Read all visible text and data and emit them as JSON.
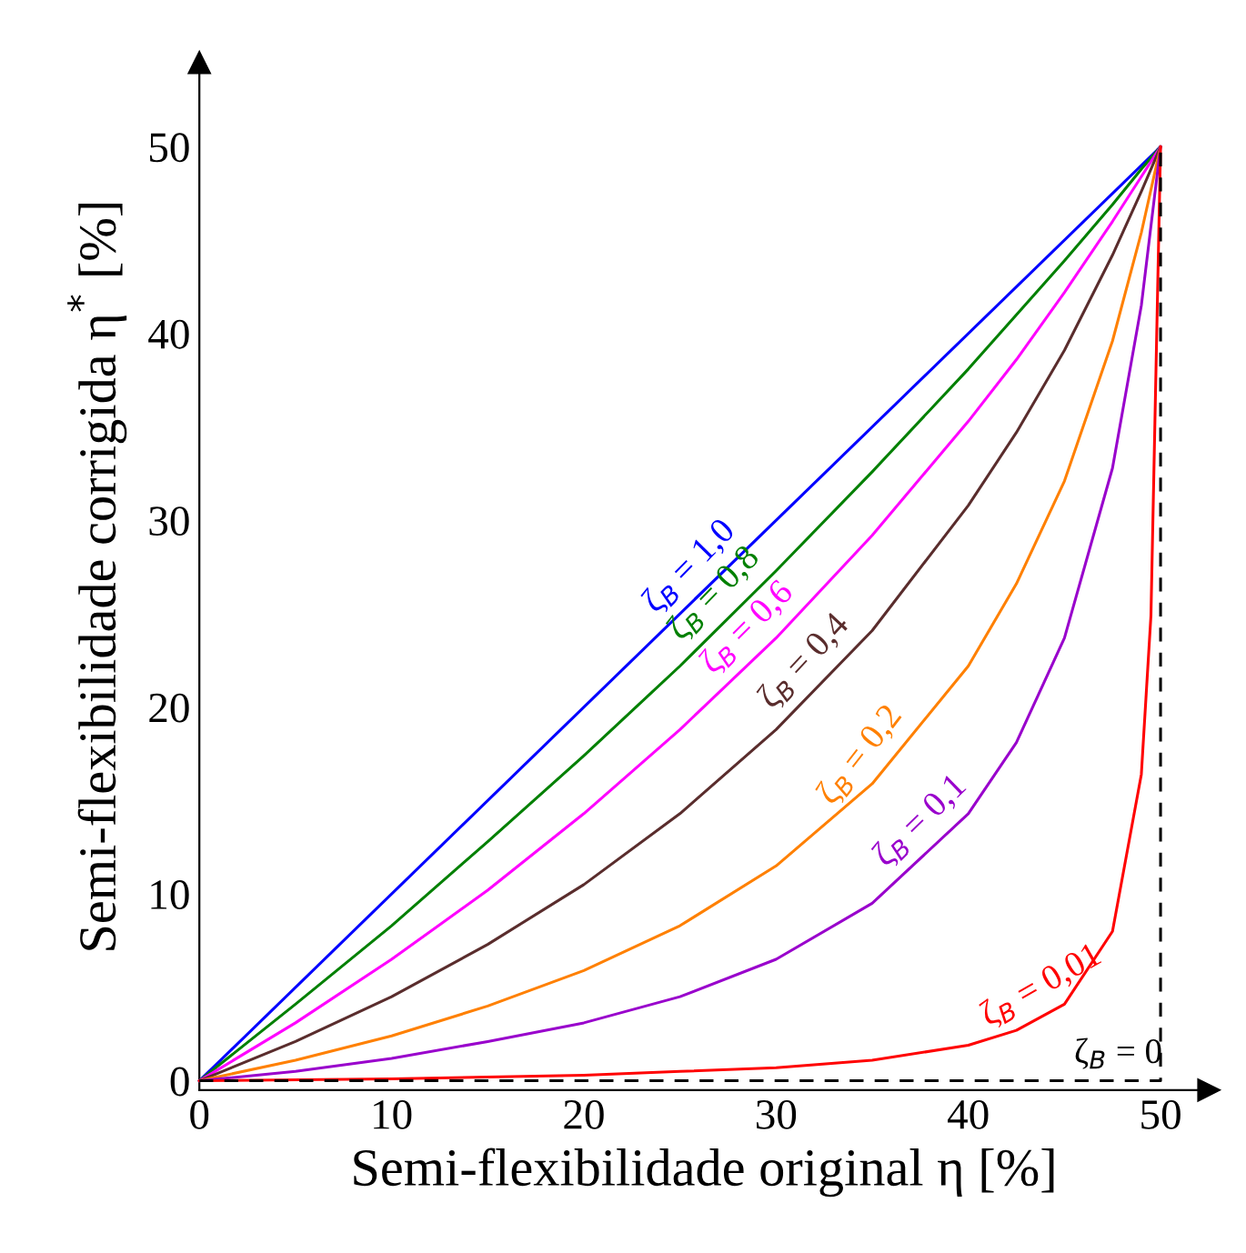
{
  "chart_data": {
    "type": "line",
    "xlabel": "Semi-flexibilidade original η [%]",
    "ylabel": "Semi-flexibilidade corrigida η$^{*}$ [%]",
    "xlim": [
      0,
      52.5
    ],
    "ylim": [
      -0.5,
      54.5
    ],
    "xticks": [
      0,
      10,
      20,
      30,
      40,
      50
    ],
    "yticks": [
      0,
      10,
      20,
      30,
      40,
      50
    ],
    "grid": false,
    "legend": false,
    "marker": "none",
    "series": [
      {
        "name": "ζ$_{B}$ = 1,0",
        "color": "#0000ff",
        "x": [
          0,
          50
        ],
        "values": [
          0,
          50
        ]
      },
      {
        "name": "ζ$_{B}$ = 0,8",
        "color": "#008000",
        "x": [
          0,
          5,
          10,
          15,
          20,
          25,
          30,
          35,
          40,
          42.5,
          45,
          47.5,
          49,
          50
        ],
        "values": [
          0,
          4.1,
          8.3,
          12.8,
          17.4,
          22.2,
          27.3,
          32.6,
          38.1,
          41.0,
          43.9,
          46.9,
          48.8,
          50
        ]
      },
      {
        "name": "ζ$_{B}$ = 0,6",
        "color": "#ff00ff",
        "x": [
          0,
          5,
          10,
          15,
          20,
          25,
          30,
          35,
          40,
          42.5,
          45,
          47.5,
          49,
          50
        ],
        "values": [
          0,
          3.1,
          6.5,
          10.2,
          14.3,
          18.8,
          23.7,
          29.2,
          35.3,
          38.6,
          42.2,
          46.0,
          48.4,
          50
        ]
      },
      {
        "name": "ζ$_{B}$ = 0,4",
        "color": "#5a2d2d",
        "x": [
          0,
          5,
          10,
          15,
          20,
          25,
          30,
          35,
          40,
          42.5,
          45,
          47.5,
          49,
          50
        ],
        "values": [
          0,
          2.1,
          4.5,
          7.3,
          10.5,
          14.3,
          18.8,
          24.1,
          30.8,
          34.7,
          39.1,
          44.2,
          47.6,
          50
        ]
      },
      {
        "name": "ζ$_{B}$ = 0,2",
        "color": "#ff8000",
        "x": [
          0,
          5,
          10,
          15,
          20,
          25,
          30,
          35,
          40,
          42.5,
          45,
          47.5,
          49,
          50
        ],
        "values": [
          0,
          1.1,
          2.4,
          4.0,
          5.9,
          8.3,
          11.5,
          15.9,
          22.2,
          26.6,
          32.1,
          39.6,
          45.4,
          50
        ]
      },
      {
        "name": "ζ$_{B}$ = 0,1",
        "color": "#9900cc",
        "x": [
          0,
          5,
          10,
          15,
          20,
          25,
          30,
          35,
          40,
          42.5,
          45,
          47.5,
          49,
          50
        ],
        "values": [
          0,
          0.5,
          1.2,
          2.1,
          3.1,
          4.5,
          6.5,
          9.5,
          14.3,
          18.1,
          23.7,
          32.8,
          41.5,
          50
        ]
      },
      {
        "name": "ζ$_{B}$ = 0,01",
        "color": "#ff0000",
        "x": [
          0,
          10,
          20,
          25,
          30,
          35,
          40,
          42.5,
          45,
          47.5,
          49,
          49.5,
          50
        ],
        "values": [
          0,
          0.1,
          0.3,
          0.5,
          0.7,
          1.1,
          1.9,
          2.7,
          4.1,
          8.0,
          16.4,
          24.9,
          50
        ]
      },
      {
        "name": "ζ$_{B}$ = 0",
        "color": "#000000",
        "line_style": "dashed",
        "x": [
          0,
          50,
          50
        ],
        "values": [
          0,
          0,
          50
        ]
      }
    ]
  }
}
